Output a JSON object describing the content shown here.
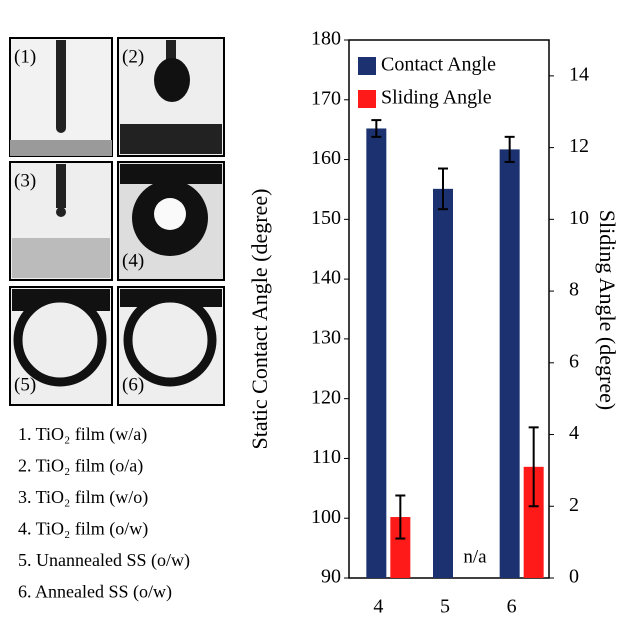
{
  "figure_panels": {
    "labels": [
      "(1)",
      "(2)",
      "(3)",
      "(4)",
      "(5)",
      "(6)"
    ],
    "legend_items": [
      "1. TiO₂ film (w/a)",
      "2. TiO₂ film (o/a)",
      "3. TiO₂ film (w/o)",
      "4. TiO₂ film (o/w)",
      "5. Unannealed SS (o/w)",
      "6. Annealed SS (o/w)"
    ]
  },
  "chart_data": {
    "type": "bar",
    "categories": [
      "4",
      "5",
      "6"
    ],
    "ylabel": "Static Contact Angle (degree)",
    "y2label": "Sliding Angle (degree)",
    "ylim": [
      90,
      180
    ],
    "yticks": [
      90,
      100,
      110,
      120,
      130,
      140,
      150,
      160,
      170,
      180
    ],
    "y2lim": [
      0,
      15
    ],
    "y2ticks": [
      0,
      2,
      4,
      6,
      8,
      10,
      12,
      14
    ],
    "legend": "upper left",
    "annotation": "n/a",
    "series": [
      {
        "name": "Contact Angle",
        "color": "#1c3170",
        "values": [
          165.2,
          155.1,
          161.7
        ],
        "errors": [
          1.4,
          3.4,
          2.1
        ]
      },
      {
        "name": "Sliding Angle",
        "color": "#ff1a1a",
        "axis": "y2",
        "values": [
          1.7,
          null,
          3.1
        ],
        "errors": [
          0.6,
          null,
          1.1
        ]
      }
    ]
  }
}
